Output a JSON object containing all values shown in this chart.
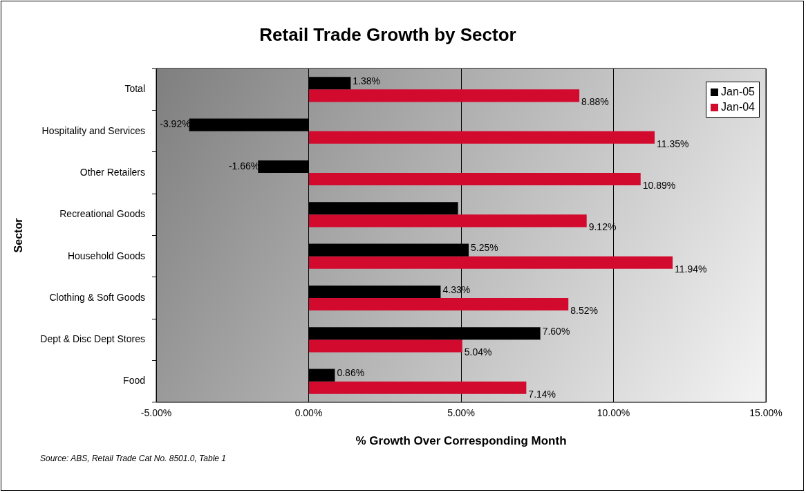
{
  "chart_data": {
    "type": "bar",
    "orientation": "horizontal",
    "title": "Retail Trade Growth by Sector",
    "xlabel": "% Growth Over Corresponding Month",
    "ylabel": "Sector",
    "categories": [
      "Total",
      "Hospitality and Services",
      "Other Retailers",
      "Recreational Goods",
      "Household Goods",
      "Clothing & Soft Goods",
      "Dept & Disc Dept Stores",
      "Food"
    ],
    "series": [
      {
        "name": "Jan-05",
        "color": "#000000",
        "values": [
          1.38,
          -3.92,
          -1.66,
          4.9,
          5.25,
          4.33,
          7.6,
          0.86
        ],
        "value_labels": [
          "1.38%",
          "-3.92%",
          "-1.66%",
          null,
          "5.25%",
          "4.33%",
          "7.60%",
          "0.86%"
        ]
      },
      {
        "name": "Jan-04",
        "color": "#d20a2e",
        "values": [
          8.88,
          11.35,
          10.89,
          9.12,
          11.94,
          8.52,
          5.04,
          7.14
        ],
        "value_labels": [
          "8.88%",
          "11.35%",
          "10.89%",
          "9.12%",
          "11.94%",
          "8.52%",
          "5.04%",
          "7.14%"
        ]
      }
    ],
    "xlim": [
      -5,
      15
    ],
    "xticks": [
      {
        "value": -5,
        "label": "-5.00%"
      },
      {
        "value": 0,
        "label": "0.00%"
      },
      {
        "value": 5,
        "label": "5.00%"
      },
      {
        "value": 10,
        "label": "10.00%"
      },
      {
        "value": 15,
        "label": "15.00%"
      }
    ],
    "grid": "x",
    "legend": "top right",
    "annotations": [
      "Source:  ABS, Retail Trade Cat No. 8501.0, Table 1"
    ]
  }
}
